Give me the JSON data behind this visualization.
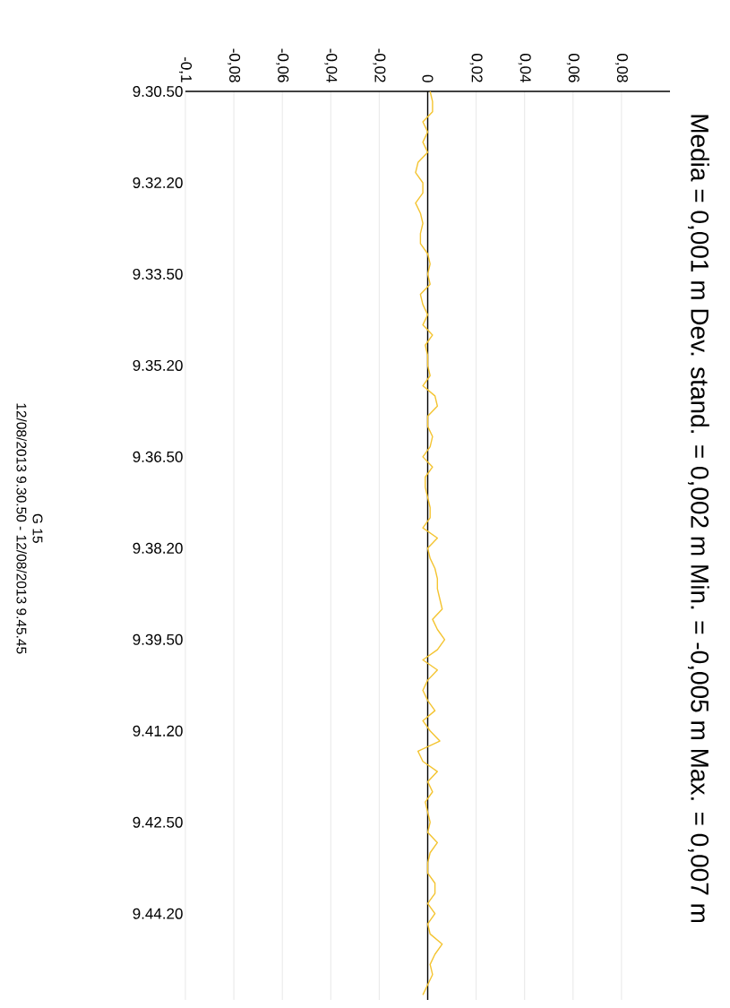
{
  "chart_data": {
    "type": "line",
    "orientation": "horizontal",
    "title": "Media = 0,001 m Dev. stand. = 0,002 m Min. = -0,005 m Max. = 0,007 m",
    "annotations": [
      "G 15",
      "12/08/2013 9.30.50 - 12/08/2013 9.45.45"
    ],
    "categories": [
      "9.30.50",
      null,
      null,
      null,
      null,
      null,
      null,
      null,
      null,
      "9.32.20",
      null,
      null,
      null,
      null,
      null,
      null,
      null,
      null,
      "9.33.50",
      null,
      null,
      null,
      null,
      null,
      null,
      null,
      null,
      "9.35.20",
      null,
      null,
      null,
      null,
      null,
      null,
      null,
      null,
      "9.36.50",
      null,
      null,
      null,
      null,
      null,
      null,
      null,
      null,
      "9.38.20",
      null,
      null,
      null,
      null,
      null,
      null,
      null,
      null,
      "9.39.50",
      null,
      null,
      null,
      null,
      null,
      null,
      null,
      null,
      "9.41.20",
      null,
      null,
      null,
      null,
      null,
      null,
      null,
      null,
      "9.42.50",
      null,
      null,
      null,
      null,
      null,
      null,
      null,
      null,
      "9.44.20",
      null,
      null,
      null,
      null,
      null,
      null,
      null,
      null
    ],
    "series": [
      {
        "color": "#f4c430",
        "values": [
          0.001,
          0.002,
          0.002,
          -0.002,
          0,
          -0.002,
          0,
          -0.004,
          -0.005,
          -0.002,
          -0.002,
          -0.005,
          -0.003,
          -0.002,
          -0.003,
          -0.003,
          0,
          0.001,
          0,
          0.001,
          -0.003,
          -0.002,
          0,
          -0.002,
          0.002,
          -0.001,
          0,
          0,
          0.001,
          -0.002,
          0.003,
          0.004,
          0,
          0,
          0.002,
          0.001,
          -0.002,
          0.002,
          -0.001,
          -0.001,
          0,
          0.001,
          0.001,
          -0.002,
          0.004,
          0,
          0.001,
          0.003,
          0.004,
          0.004,
          0.005,
          0.006,
          0.002,
          0.004,
          0.007,
          0.004,
          -0.002,
          0.004,
          0,
          -0.002,
          0,
          0.003,
          -0.002,
          0.001,
          0.005,
          -0.004,
          -0.002,
          0.004,
          0,
          0.002,
          -0.001,
          0,
          0.001,
          0,
          0.004,
          0.001,
          0,
          0,
          0.003,
          0.003,
          0,
          0.003,
          0,
          0.001,
          0.006,
          0.003,
          0.001,
          0.002,
          0,
          -0.002
        ]
      }
    ],
    "xlim": [
      -0.1,
      0.1
    ],
    "xticks": [
      {
        "value": -0.1,
        "label": "-0,1"
      },
      {
        "value": -0.08,
        "label": "-0,08"
      },
      {
        "value": -0.06,
        "label": "-0,06"
      },
      {
        "value": -0.04,
        "label": "-0,04"
      },
      {
        "value": -0.02,
        "label": "-0,02"
      },
      {
        "value": 0,
        "label": "0"
      },
      {
        "value": 0.02,
        "label": "0,02"
      },
      {
        "value": 0.04,
        "label": "0,04"
      },
      {
        "value": 0.06,
        "label": "0,06"
      },
      {
        "value": 0.08,
        "label": "0,08"
      }
    ],
    "grid": "x",
    "ref_lines": [
      {
        "axis": "x",
        "value": 0,
        "color": "#000000"
      }
    ]
  }
}
